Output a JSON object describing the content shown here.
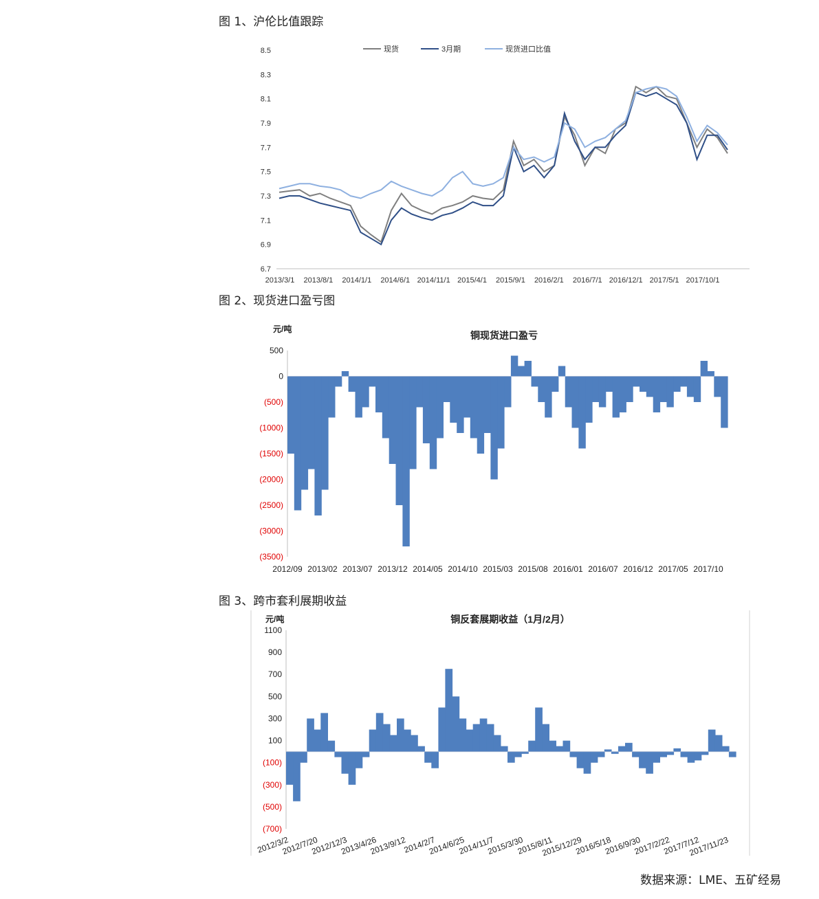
{
  "captions": {
    "fig1": "图 1、沪伦比值跟踪",
    "fig2": "图 2、现货进口盈亏图",
    "fig3": "图 3、跨市套利展期收益"
  },
  "source": "数据来源：LME、五矿经易",
  "colors": {
    "spot": "#7f7f7f",
    "m3": "#2f4f87",
    "ratio": "#8eb0e0",
    "area": "#4f7fbf",
    "red": "#e00000"
  },
  "chart_data": [
    {
      "type": "line",
      "title": "",
      "ylim": [
        6.7,
        8.5
      ],
      "yticks": [
        "8.5",
        "8.3",
        "8.1",
        "7.9",
        "7.7",
        "7.5",
        "7.3",
        "7.1",
        "6.9",
        "6.7"
      ],
      "xticks": [
        "2013/3/1",
        "2013/8/1",
        "2014/1/1",
        "2014/6/1",
        "2014/11/1",
        "2015/4/1",
        "2015/9/1",
        "2016/2/1",
        "2016/7/1",
        "2016/12/1",
        "2017/5/1",
        "2017/10/1"
      ],
      "legend_position": "top",
      "series": [
        {
          "name": "现货",
          "values": [
            7.33,
            7.34,
            7.35,
            7.3,
            7.32,
            7.28,
            7.25,
            7.22,
            7.05,
            6.98,
            6.92,
            7.18,
            7.32,
            7.22,
            7.18,
            7.15,
            7.2,
            7.22,
            7.25,
            7.3,
            7.28,
            7.27,
            7.35,
            7.75,
            7.55,
            7.6,
            7.5,
            7.55,
            7.95,
            7.8,
            7.55,
            7.7,
            7.65,
            7.85,
            7.9,
            8.2,
            8.15,
            8.2,
            8.12,
            8.1,
            7.9,
            7.7,
            7.85,
            7.78,
            7.65
          ]
        },
        {
          "name": "3月期",
          "values": [
            7.28,
            7.3,
            7.3,
            7.27,
            7.24,
            7.22,
            7.2,
            7.18,
            7.0,
            6.95,
            6.9,
            7.1,
            7.2,
            7.15,
            7.12,
            7.1,
            7.14,
            7.16,
            7.2,
            7.25,
            7.22,
            7.22,
            7.3,
            7.7,
            7.5,
            7.55,
            7.45,
            7.55,
            7.98,
            7.75,
            7.6,
            7.7,
            7.7,
            7.8,
            7.88,
            8.15,
            8.12,
            8.15,
            8.1,
            8.05,
            7.9,
            7.6,
            7.8,
            7.8,
            7.68
          ]
        },
        {
          "name": "现货进口比值",
          "values": [
            7.36,
            7.38,
            7.4,
            7.4,
            7.38,
            7.37,
            7.35,
            7.3,
            7.28,
            7.32,
            7.35,
            7.42,
            7.38,
            7.35,
            7.32,
            7.3,
            7.35,
            7.45,
            7.5,
            7.4,
            7.38,
            7.4,
            7.45,
            7.7,
            7.6,
            7.62,
            7.58,
            7.62,
            7.9,
            7.85,
            7.7,
            7.75,
            7.78,
            7.85,
            7.92,
            8.15,
            8.18,
            8.2,
            8.18,
            8.12,
            7.95,
            7.75,
            7.88,
            7.82,
            7.72
          ]
        }
      ]
    },
    {
      "type": "area",
      "title": "铜现货进口盈亏",
      "ylabel": "元/吨",
      "ylim": [
        -3500,
        500
      ],
      "yticks": [
        "500",
        "0",
        "(500)",
        "(1000)",
        "(1500)",
        "(2000)",
        "(2500)",
        "(3000)",
        "(3500)"
      ],
      "xticks": [
        "2012/09",
        "2013/02",
        "2013/07",
        "2013/12",
        "2014/05",
        "2014/10",
        "2015/03",
        "2015/08",
        "2016/01",
        "2016/07",
        "2016/12",
        "2017/05",
        "2017/10"
      ],
      "values": [
        -1500,
        -2600,
        -2200,
        -1800,
        -2700,
        -2200,
        -800,
        -200,
        100,
        -300,
        -800,
        -600,
        -200,
        -700,
        -1200,
        -1700,
        -2500,
        -3300,
        -1800,
        -600,
        -1300,
        -1800,
        -1200,
        -500,
        -900,
        -1100,
        -800,
        -1200,
        -1500,
        -1100,
        -2000,
        -1400,
        -600,
        400,
        200,
        300,
        -200,
        -500,
        -800,
        -300,
        200,
        -600,
        -1000,
        -1400,
        -900,
        -500,
        -600,
        -300,
        -800,
        -700,
        -500,
        -200,
        -300,
        -400,
        -700,
        -500,
        -600,
        -300,
        -200,
        -400,
        -500,
        300,
        100,
        -400,
        -1000
      ]
    },
    {
      "type": "area",
      "title": "铜反套展期收益（1月/2月）",
      "ylabel": "元/吨",
      "ylim": [
        -700,
        1100
      ],
      "yticks": [
        "1100",
        "900",
        "700",
        "500",
        "300",
        "100",
        "(100)",
        "(300)",
        "(500)",
        "(700)"
      ],
      "xticks": [
        "2012/3/2",
        "2012/7/20",
        "2012/12/3",
        "2013/4/26",
        "2013/9/12",
        "2014/2/7",
        "2014/6/25",
        "2014/11/7",
        "2015/3/30",
        "2015/8/11",
        "2015/12/29",
        "2016/5/18",
        "2016/9/30",
        "2017/2/22",
        "2017/7/12",
        "2017/11/23"
      ],
      "values": [
        -300,
        -450,
        -100,
        300,
        200,
        350,
        100,
        -50,
        -200,
        -300,
        -150,
        -50,
        200,
        350,
        250,
        150,
        300,
        200,
        150,
        50,
        -100,
        -150,
        400,
        750,
        500,
        300,
        200,
        250,
        300,
        250,
        150,
        50,
        -100,
        -50,
        -20,
        100,
        400,
        250,
        100,
        50,
        100,
        -50,
        -150,
        -200,
        -100,
        -50,
        20,
        -20,
        50,
        80,
        -50,
        -150,
        -200,
        -100,
        -50,
        -30,
        30,
        -50,
        -100,
        -80,
        -30,
        200,
        150,
        50,
        -50
      ]
    }
  ]
}
